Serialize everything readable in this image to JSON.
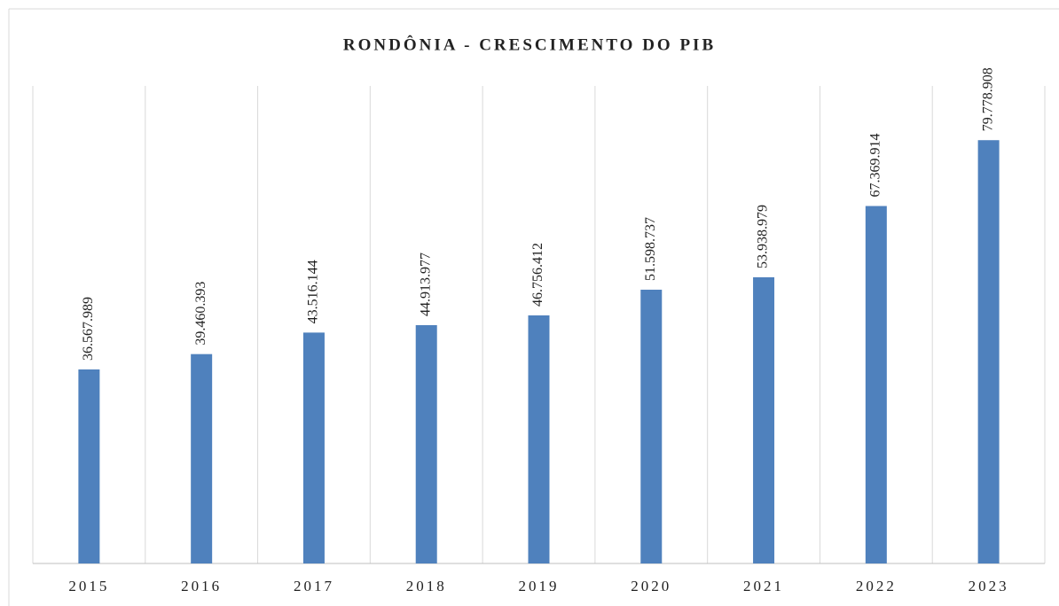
{
  "chart_data": {
    "type": "bar",
    "title": "RONDÔNIA - CRESCIMENTO DO PIB",
    "categories": [
      "2015",
      "2016",
      "2017",
      "2018",
      "2019",
      "2020",
      "2021",
      "2022",
      "2023"
    ],
    "values": [
      36567989,
      39460393,
      43516144,
      44913977,
      46756412,
      51598737,
      53938979,
      67369914,
      79778908
    ],
    "value_labels": [
      "36.567.989",
      "39.460.393",
      "43.516.144",
      "44.913.977",
      "46.756.412",
      "51.598.737",
      "53.938.979",
      "67.369.914",
      "79.778.908"
    ],
    "color": "#4f81bd",
    "ylim": [
      0,
      90000000
    ]
  }
}
